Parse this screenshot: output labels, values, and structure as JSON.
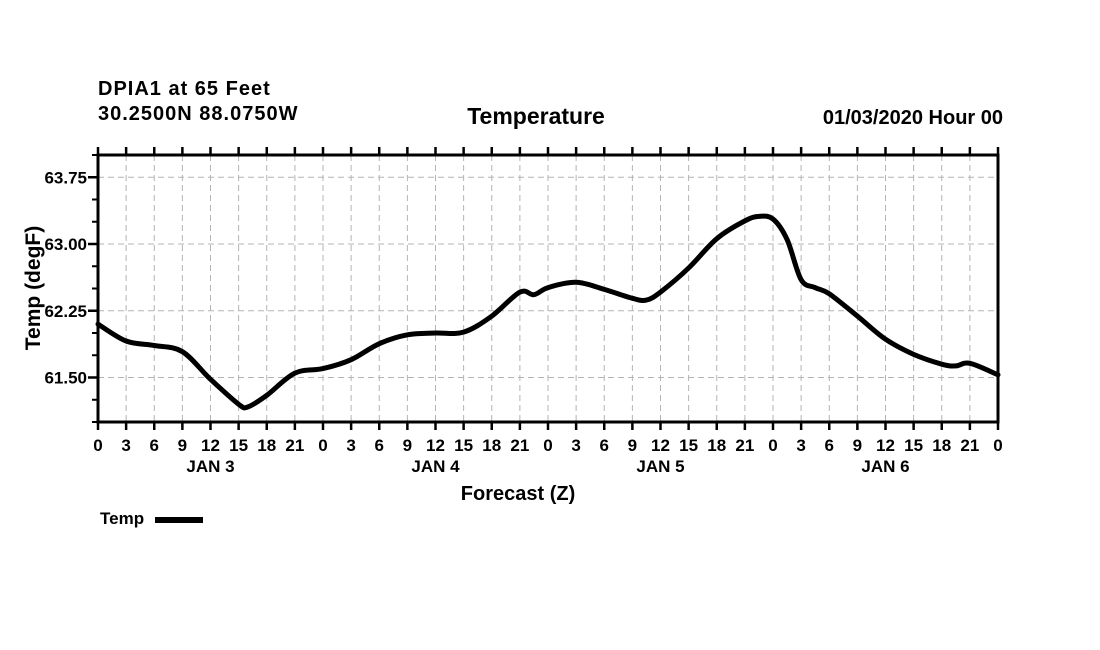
{
  "header": {
    "station_line": "DPIA1 at 65 Feet",
    "coords_line": "30.2500N 88.0750W",
    "init_line": "01/03/2020 Hour 00"
  },
  "title": "Temperature",
  "axes": {
    "y_label": "Temp (degF)",
    "x_label": "Forecast (Z)"
  },
  "legend": {
    "label": "Temp"
  },
  "colors": {
    "line": "#000000",
    "frame": "#000000",
    "grid": "#b4b4b4",
    "text": "#000000",
    "background": "#ffffff"
  },
  "chart_data": {
    "type": "line",
    "title": "Temperature",
    "xlabel": "Forecast (Z)",
    "ylabel": "Temp (degF)",
    "x_unit": "hours since 01/03/2020 00Z",
    "x_range_hours": [
      0,
      96
    ],
    "ylim": [
      61.0,
      64.0
    ],
    "y_major_ticks": [
      61.5,
      62.25,
      63.0,
      63.75
    ],
    "y_minor_step": 0.25,
    "x_tick_step_hours": 3,
    "x_tick_labels_cycle": [
      "0",
      "3",
      "6",
      "9",
      "12",
      "15",
      "18",
      "21"
    ],
    "day_labels": [
      {
        "label": "JAN 3",
        "center_hour": 12
      },
      {
        "label": "JAN 4",
        "center_hour": 36
      },
      {
        "label": "JAN 5",
        "center_hour": 60
      },
      {
        "label": "JAN 6",
        "center_hour": 84
      }
    ],
    "grid": true,
    "grid_style": "dashed",
    "legend_position": "bottom-left",
    "series": [
      {
        "name": "Temp",
        "hours": [
          0,
          3,
          6,
          9,
          12,
          15,
          16,
          18,
          21,
          24,
          27,
          30,
          33,
          36,
          39,
          42,
          45,
          46.5,
          48,
          51,
          54,
          57,
          58.5,
          60,
          63,
          66,
          69,
          70.5,
          72,
          73.5,
          75,
          76.5,
          78,
          81,
          84,
          87,
          90,
          91.5,
          93,
          96
        ],
        "values": [
          62.1,
          61.91,
          61.86,
          61.79,
          61.48,
          61.2,
          61.17,
          61.3,
          61.55,
          61.6,
          61.7,
          61.88,
          61.98,
          62.0,
          62.01,
          62.19,
          62.46,
          62.43,
          62.51,
          62.57,
          62.49,
          62.39,
          62.37,
          62.46,
          62.73,
          63.06,
          63.26,
          63.31,
          63.28,
          63.05,
          62.6,
          62.51,
          62.44,
          62.19,
          61.93,
          61.76,
          61.65,
          61.63,
          61.66,
          61.53
        ]
      }
    ]
  }
}
